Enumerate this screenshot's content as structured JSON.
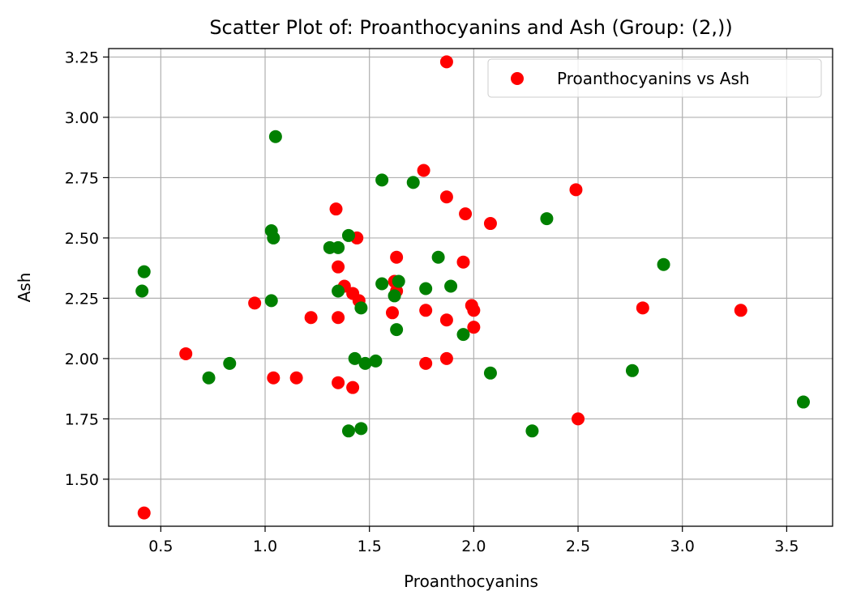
{
  "chart_data": {
    "type": "scatter",
    "title": "Scatter Plot of: Proanthocyanins and Ash (Group: (2,))",
    "xlabel": "Proanthocyanins",
    "ylabel": "Ash",
    "xlim": [
      0.25,
      3.72
    ],
    "ylim": [
      1.305,
      3.285
    ],
    "xticks": [
      0.5,
      1.0,
      1.5,
      2.0,
      2.5,
      3.0,
      3.5
    ],
    "xtick_labels": [
      "0.5",
      "1.0",
      "1.5",
      "2.0",
      "2.5",
      "3.0",
      "3.5"
    ],
    "yticks": [
      1.5,
      1.75,
      2.0,
      2.25,
      2.5,
      2.75,
      3.0,
      3.25
    ],
    "ytick_labels": [
      "1.50",
      "1.75",
      "2.00",
      "2.25",
      "2.50",
      "2.75",
      "3.00",
      "3.25"
    ],
    "grid": true,
    "legend": {
      "placement": "top-right",
      "entries": [
        "Proanthocyanins vs Ash"
      ]
    },
    "series": [
      {
        "name": "Proanthocyanins vs Ash",
        "color": "#ff0000",
        "points": [
          [
            1.87,
            3.23
          ],
          [
            1.76,
            2.78
          ],
          [
            1.87,
            2.67
          ],
          [
            2.49,
            2.7
          ],
          [
            1.34,
            2.62
          ],
          [
            1.96,
            2.6
          ],
          [
            2.08,
            2.56
          ],
          [
            1.44,
            2.5
          ],
          [
            1.63,
            2.42
          ],
          [
            1.95,
            2.4
          ],
          [
            1.35,
            2.38
          ],
          [
            1.62,
            2.32
          ],
          [
            1.38,
            2.3
          ],
          [
            1.63,
            2.28
          ],
          [
            1.42,
            2.27
          ],
          [
            1.45,
            2.24
          ],
          [
            0.95,
            2.23
          ],
          [
            1.99,
            2.22
          ],
          [
            2.81,
            2.21
          ],
          [
            1.77,
            2.2
          ],
          [
            2.0,
            2.2
          ],
          [
            3.28,
            2.2
          ],
          [
            1.61,
            2.19
          ],
          [
            1.22,
            2.17
          ],
          [
            1.35,
            2.17
          ],
          [
            1.87,
            2.16
          ],
          [
            2.0,
            2.13
          ],
          [
            0.62,
            2.02
          ],
          [
            1.87,
            2.0
          ],
          [
            1.77,
            1.98
          ],
          [
            1.04,
            1.92
          ],
          [
            1.15,
            1.92
          ],
          [
            1.35,
            1.9
          ],
          [
            1.42,
            1.88
          ],
          [
            2.5,
            1.75
          ],
          [
            0.42,
            1.36
          ]
        ]
      },
      {
        "name": "",
        "color": "#008000",
        "points": [
          [
            1.05,
            2.92
          ],
          [
            1.56,
            2.74
          ],
          [
            1.71,
            2.73
          ],
          [
            2.35,
            2.58
          ],
          [
            1.03,
            2.53
          ],
          [
            1.4,
            2.51
          ],
          [
            1.04,
            2.5
          ],
          [
            1.31,
            2.46
          ],
          [
            1.35,
            2.46
          ],
          [
            1.83,
            2.42
          ],
          [
            2.91,
            2.39
          ],
          [
            0.42,
            2.36
          ],
          [
            1.64,
            2.32
          ],
          [
            1.56,
            2.31
          ],
          [
            1.89,
            2.3
          ],
          [
            1.77,
            2.29
          ],
          [
            0.41,
            2.28
          ],
          [
            1.35,
            2.28
          ],
          [
            1.62,
            2.26
          ],
          [
            1.03,
            2.24
          ],
          [
            1.46,
            2.21
          ],
          [
            1.63,
            2.12
          ],
          [
            1.95,
            2.1
          ],
          [
            1.43,
            2.0
          ],
          [
            1.53,
            1.99
          ],
          [
            1.48,
            1.98
          ],
          [
            0.83,
            1.98
          ],
          [
            2.76,
            1.95
          ],
          [
            2.08,
            1.94
          ],
          [
            0.73,
            1.92
          ],
          [
            3.58,
            1.82
          ],
          [
            1.46,
            1.71
          ],
          [
            1.4,
            1.7
          ],
          [
            2.28,
            1.7
          ]
        ]
      }
    ]
  }
}
